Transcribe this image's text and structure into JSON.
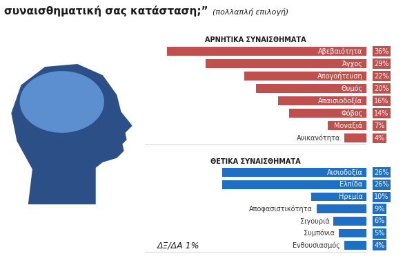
{
  "title": "συναισθηματική σας κατάσταση;”",
  "subtitle": "(πολλαπλή επιλογή)",
  "footnote": "ΔΞ/ΔΑ 1%",
  "chart_data": [
    {
      "type": "bar",
      "orientation": "horizontal",
      "title": "ΑΡΝΗΤΙΚΑ ΣΥΝΑΙΣΘΗΜΑΤΑ",
      "categories": [
        "Αβεβαιότητα",
        "Άγχος",
        "Απογοήτευση",
        "Θυμός",
        "Απαισιοδοξία",
        "Φόβος",
        "Μοναξιά",
        "Ανικανότητα"
      ],
      "values": [
        36,
        29,
        22,
        20,
        16,
        14,
        7,
        4
      ],
      "value_labels": [
        "36%",
        "29%",
        "22%",
        "20%",
        "16%",
        "14%",
        "7%",
        "4%"
      ],
      "color": "#c0504d",
      "xlim": [
        40,
        0
      ],
      "data_labels": true,
      "tick_labels": false
    },
    {
      "type": "bar",
      "orientation": "horizontal",
      "title": "ΘΕΤΙΚΑ ΣΥΝΑΙΣΘΗΜΑΤΑ",
      "categories": [
        "Αισιοδοξία",
        "Ελπίδα",
        "Ηρεμία",
        "Αποφασιστικότητα",
        "Σιγουριά",
        "Συμπόνια",
        "Ενθουσιασμός"
      ],
      "values": [
        26,
        26,
        10,
        9,
        6,
        5,
        4
      ],
      "value_labels": [
        "26%",
        "26%",
        "10%",
        "9%",
        "6%",
        "5%",
        "4%"
      ],
      "color": "#1f6fc5",
      "xlim": [
        40,
        0
      ],
      "data_labels": true,
      "tick_labels": false
    }
  ]
}
